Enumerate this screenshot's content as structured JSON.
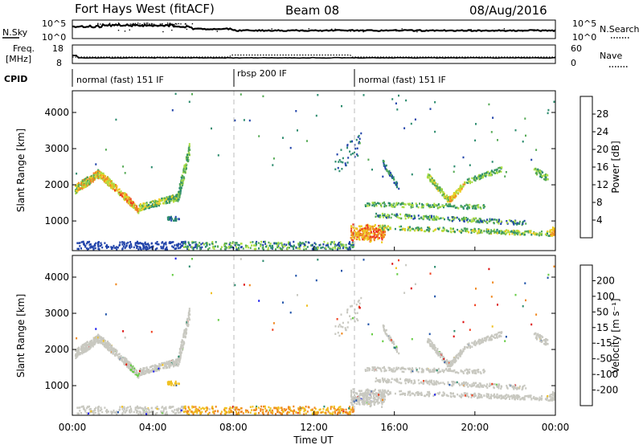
{
  "chart_data": {
    "type": "heatmap",
    "title": {
      "left": "Fort Hays West (fitACF)",
      "center": "Beam 08",
      "right": "08/Aug/2016"
    },
    "xlabel": "Time UT",
    "x_ticks": [
      "00:00",
      "04:00",
      "08:00",
      "12:00",
      "16:00",
      "20:00",
      "00:00"
    ],
    "xlim_hours": [
      0,
      24
    ],
    "noise_panel": {
      "left_label": "N.Sky",
      "left_ticks": [
        "10^5",
        "10^0"
      ],
      "right_label": "N.Search",
      "right_ticks": [
        "10^5",
        "10^0"
      ]
    },
    "freq_panel": {
      "left_label_line1": "Freq.",
      "left_label_line2": "[MHz]",
      "left_ticks": [
        "18",
        "8"
      ],
      "right_label": "Nave",
      "right_ticks": [
        "60",
        "0"
      ]
    },
    "cpid": {
      "label": "CPID",
      "segments": [
        {
          "start_hour": 0,
          "end_hour": 7.9,
          "name": "normal (fast) 151 IF"
        },
        {
          "start_hour": 7.9,
          "end_hour": 13.9,
          "name": "rbsp 200 IF"
        },
        {
          "start_hour": 13.9,
          "end_hour": 24,
          "name": "normal (fast) 151 IF"
        }
      ]
    },
    "power_panel": {
      "ylabel": "Slant Range [km]",
      "y_ticks": [
        "1000",
        "2000",
        "3000",
        "4000"
      ],
      "ylim_km": [
        180,
        4600
      ],
      "colorbar_label": "Power [dB]",
      "colorbar_ticks": [
        "4",
        "8",
        "12",
        "16",
        "20",
        "24",
        "28"
      ],
      "colorbar_range": [
        0,
        32
      ],
      "colors": [
        "#1a1aee",
        "#2244aa",
        "#2c8c6e",
        "#55aa55",
        "#aadd44",
        "#eecc22",
        "#ee8822",
        "#ee3322"
      ]
    },
    "velocity_panel": {
      "ylabel": "Slant Range [km]",
      "y_ticks": [
        "1000",
        "2000",
        "3000",
        "4000"
      ],
      "ylim_km": [
        180,
        4600
      ],
      "colorbar_label": "Velocity [m s⁻¹]",
      "colorbar_ticks": [
        "200",
        "100",
        "50",
        "15",
        "-15",
        "-50",
        "-100",
        "-200"
      ],
      "colors": [
        "#1a1aee",
        "#2255aa",
        "#2c8c6e",
        "#66cc44",
        "#c8c8c0",
        "#f0c020",
        "#f08820",
        "#f04020",
        "#dd1111"
      ]
    }
  }
}
